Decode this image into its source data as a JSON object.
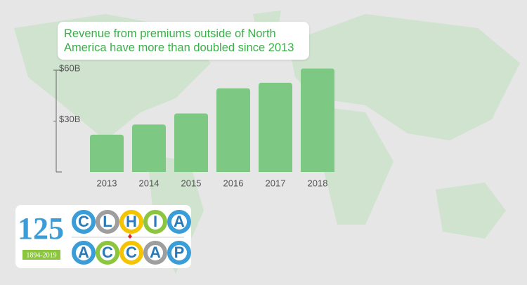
{
  "chart_data": {
    "type": "bar",
    "title": "Revenue from premiums outside of North America have more than doubled since 2013",
    "categories": [
      "2013",
      "2014",
      "2015",
      "2016",
      "2017",
      "2018"
    ],
    "values": [
      22,
      28,
      34.5,
      49.3,
      52.6,
      61
    ],
    "color": "#7dc882",
    "ylim": [
      0,
      60
    ],
    "yticks": [
      {
        "value": 30,
        "label": "$30B"
      },
      {
        "value": 60,
        "label": "$60B"
      }
    ]
  },
  "logo": {
    "years": "125",
    "dates": "1894-2019",
    "top_letters": [
      "C",
      "L",
      "H",
      "I",
      "A"
    ],
    "bottom_letters": [
      "A",
      "C",
      "C",
      "A",
      "P"
    ]
  }
}
